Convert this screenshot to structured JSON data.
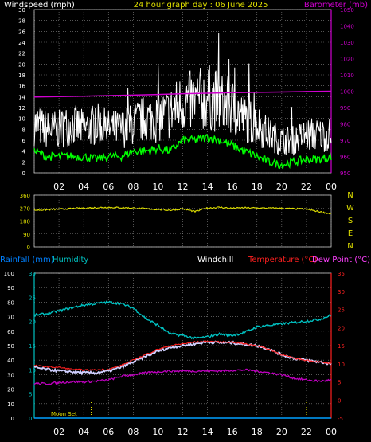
{
  "chart_data": [
    {
      "type": "line",
      "title": "24 hour graph day : 06 June 2025",
      "ylabel_left": "Windspeed (mph)",
      "ylabel_right": "Barometer (mb)",
      "ylim_left": [
        0,
        30
      ],
      "yticks_left": [
        "0",
        "2",
        "4",
        "6",
        "8",
        "10",
        "12",
        "14",
        "16",
        "18",
        "20",
        "22",
        "24",
        "26",
        "28",
        "30"
      ],
      "ylim_right": [
        950,
        1050
      ],
      "yticks_right": [
        "950",
        "960",
        "970",
        "980",
        "990",
        "1000",
        "1010",
        "1020",
        "1030",
        "1040",
        "1050"
      ],
      "x_ticks": [
        "02",
        "04",
        "06",
        "08",
        "10",
        "12",
        "14",
        "16",
        "18",
        "20",
        "22",
        "00"
      ],
      "series": [
        {
          "key": "gust",
          "color": "#ffffff",
          "axis": "left",
          "x": [
            0,
            1,
            2,
            3,
            4,
            5,
            6,
            7,
            8,
            9,
            10,
            11,
            12,
            13,
            14,
            15,
            16,
            17,
            18,
            19,
            20,
            21,
            22,
            23,
            24
          ],
          "values": [
            9,
            8,
            8,
            9,
            8,
            9,
            8,
            8,
            9,
            10,
            10,
            11,
            13,
            13,
            14,
            13,
            12,
            10,
            9,
            7,
            6,
            6,
            7,
            7,
            7
          ]
        },
        {
          "key": "average",
          "color": "#00ff00",
          "axis": "left",
          "x": [
            0,
            1,
            2,
            3,
            4,
            5,
            6,
            7,
            8,
            9,
            10,
            11,
            12,
            13,
            14,
            15,
            16,
            17,
            18,
            19,
            20,
            21,
            22,
            23,
            24
          ],
          "values": [
            4,
            3,
            3,
            3,
            3,
            2.5,
            3,
            3,
            4,
            4,
            4.5,
            4,
            6,
            6,
            6.5,
            6,
            5,
            4,
            3,
            2,
            1.5,
            2,
            2.5,
            2.5,
            3
          ]
        },
        {
          "key": "barometer",
          "color": "#d000d0",
          "axis": "right",
          "x": [
            0,
            2,
            4,
            6,
            8,
            10,
            12,
            14,
            16,
            18,
            20,
            22,
            24
          ],
          "values": [
            996.5,
            996.7,
            997,
            997.3,
            997.6,
            998,
            998.5,
            998.8,
            999.1,
            999.3,
            999.5,
            999.8,
            1000
          ]
        }
      ]
    },
    {
      "type": "line",
      "yticks_left": [
        "0",
        "90",
        "180",
        "270",
        "360"
      ],
      "ylim_left": [
        0,
        360
      ],
      "right_labels": [
        "N",
        "W",
        "S",
        "E",
        "N"
      ],
      "x_ticks": [
        "02",
        "04",
        "06",
        "08",
        "10",
        "12",
        "14",
        "16",
        "18",
        "20",
        "22",
        "00"
      ],
      "series": [
        {
          "key": "direction",
          "color": "#e0e000",
          "x": [
            0,
            2,
            4,
            6,
            8,
            10,
            11,
            12,
            13,
            14,
            15,
            16,
            17,
            18,
            20,
            22,
            23,
            24
          ],
          "values": [
            255,
            262,
            270,
            275,
            270,
            260,
            255,
            265,
            245,
            270,
            275,
            268,
            272,
            270,
            268,
            262,
            245,
            230
          ]
        }
      ]
    },
    {
      "type": "line",
      "legend": [
        "Rainfall (mm)",
        "Humidity",
        "Windchill",
        "Temperature (°C)",
        "Dew Point (°C)"
      ],
      "ylim_humidity": [
        0,
        100
      ],
      "yticks_humidity": [
        "0",
        "10",
        "20",
        "30",
        "40",
        "50",
        "60",
        "70",
        "80",
        "90",
        "100"
      ],
      "ylim_rain": [
        0,
        30
      ],
      "yticks_rain": [
        "0",
        "5",
        "10",
        "15",
        "20",
        "25",
        "30"
      ],
      "ylim_temp": [
        -5,
        35
      ],
      "yticks_temp": [
        "-5",
        "0",
        "5",
        "10",
        "15",
        "20",
        "25",
        "30",
        "35"
      ],
      "x_ticks": [
        "02",
        "04",
        "06",
        "08",
        "10",
        "12",
        "14",
        "16",
        "18",
        "20",
        "22",
        "00"
      ],
      "annotation": "Moon Set",
      "series": [
        {
          "key": "humidity",
          "color": "#00c0c0",
          "axis": "humidity",
          "x": [
            0,
            1,
            2,
            3,
            4,
            5,
            6,
            7,
            8,
            9,
            10,
            11,
            12,
            13,
            14,
            15,
            16,
            17,
            18,
            19,
            20,
            21,
            22,
            23,
            24
          ],
          "values": [
            71,
            72,
            74,
            76,
            78,
            79,
            80,
            79,
            76,
            69,
            64,
            58,
            57,
            55,
            56,
            58,
            57,
            59,
            63,
            64,
            65,
            66,
            67,
            68,
            71
          ]
        },
        {
          "key": "temperature",
          "color": "#ff2020",
          "axis": "temp",
          "x": [
            0,
            1,
            2,
            3,
            4,
            5,
            6,
            7,
            8,
            9,
            10,
            11,
            12,
            13,
            14,
            15,
            16,
            17,
            18,
            19,
            20,
            21,
            22,
            23,
            24
          ],
          "values": [
            9.5,
            9.2,
            9,
            8.5,
            8.3,
            8.3,
            8.5,
            9.5,
            11,
            12.5,
            14,
            15,
            15.5,
            16,
            16.2,
            16,
            16,
            15.5,
            15,
            14,
            12.5,
            11.5,
            11,
            10.5,
            10
          ]
        },
        {
          "key": "windchill",
          "color": "#d0d0ff",
          "axis": "temp",
          "x": [
            0,
            1,
            2,
            3,
            4,
            5,
            6,
            7,
            8,
            9,
            10,
            11,
            12,
            13,
            14,
            15,
            16,
            17,
            18,
            19,
            20,
            21,
            22,
            23,
            24
          ],
          "values": [
            9,
            8.5,
            8,
            7.8,
            7.5,
            7.5,
            8,
            9,
            10.5,
            12,
            13.5,
            14.5,
            15,
            15.5,
            16,
            15.8,
            15.8,
            15.3,
            15,
            14,
            12.5,
            11.5,
            11,
            10.5,
            10
          ]
        },
        {
          "key": "dewpoint",
          "color": "#c000c0",
          "axis": "temp",
          "x": [
            0,
            1,
            2,
            3,
            4,
            5,
            6,
            7,
            8,
            9,
            10,
            11,
            12,
            13,
            14,
            15,
            16,
            17,
            18,
            19,
            20,
            21,
            22,
            23,
            24
          ],
          "values": [
            4.5,
            4.5,
            4.8,
            5,
            5,
            5.2,
            5.5,
            6.5,
            7,
            7.5,
            7.8,
            8,
            8,
            8,
            8,
            8,
            8.2,
            8.3,
            8,
            7.5,
            7,
            6,
            5.5,
            5.2,
            5.5
          ]
        }
      ]
    }
  ]
}
